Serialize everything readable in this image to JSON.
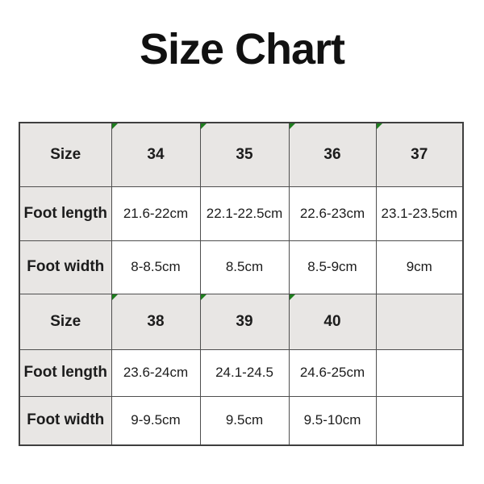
{
  "page": {
    "title": "Size Chart"
  },
  "colors": {
    "page_bg": "#ffffff",
    "header_cell_bg": "#e8e6e4",
    "value_cell_bg": "#ffffff",
    "border": "#4f4f4f",
    "text": "#1c1c1c",
    "flag_green": "#1e7e1e"
  },
  "size_table": {
    "rows": [
      {
        "cells": [
          "Size",
          "34",
          "35",
          "36",
          "37"
        ]
      },
      {
        "cells": [
          "Foot length",
          "21.6-22cm",
          "22.1-22.5cm",
          "22.6-23cm",
          "23.1-23.5cm"
        ]
      },
      {
        "cells": [
          "Foot width",
          "8-8.5cm",
          "8.5cm",
          "8.5-9cm",
          "9cm"
        ]
      },
      {
        "cells": [
          "Size",
          "38",
          "39",
          "40",
          ""
        ]
      },
      {
        "cells": [
          "Foot length",
          "23.6-24cm",
          "24.1-24.5",
          "24.6-25cm",
          ""
        ]
      },
      {
        "cells": [
          "Foot width",
          "9-9.5cm",
          "9.5cm",
          "9.5-10cm",
          ""
        ]
      }
    ]
  },
  "chart_data": {
    "type": "table",
    "title": "Size Chart",
    "columns": [
      "Size",
      "Foot length",
      "Foot width"
    ],
    "records": [
      {
        "size": "34",
        "foot_length": "21.6-22cm",
        "foot_width": "8-8.5cm"
      },
      {
        "size": "35",
        "foot_length": "22.1-22.5cm",
        "foot_width": "8.5cm"
      },
      {
        "size": "36",
        "foot_length": "22.6-23cm",
        "foot_width": "8.5-9cm"
      },
      {
        "size": "37",
        "foot_length": "23.1-23.5cm",
        "foot_width": "9cm"
      },
      {
        "size": "38",
        "foot_length": "23.6-24cm",
        "foot_width": "9-9.5cm"
      },
      {
        "size": "39",
        "foot_length": "24.1-24.5",
        "foot_width": "9.5cm"
      },
      {
        "size": "40",
        "foot_length": "24.6-25cm",
        "foot_width": "9.5-10cm"
      }
    ]
  }
}
